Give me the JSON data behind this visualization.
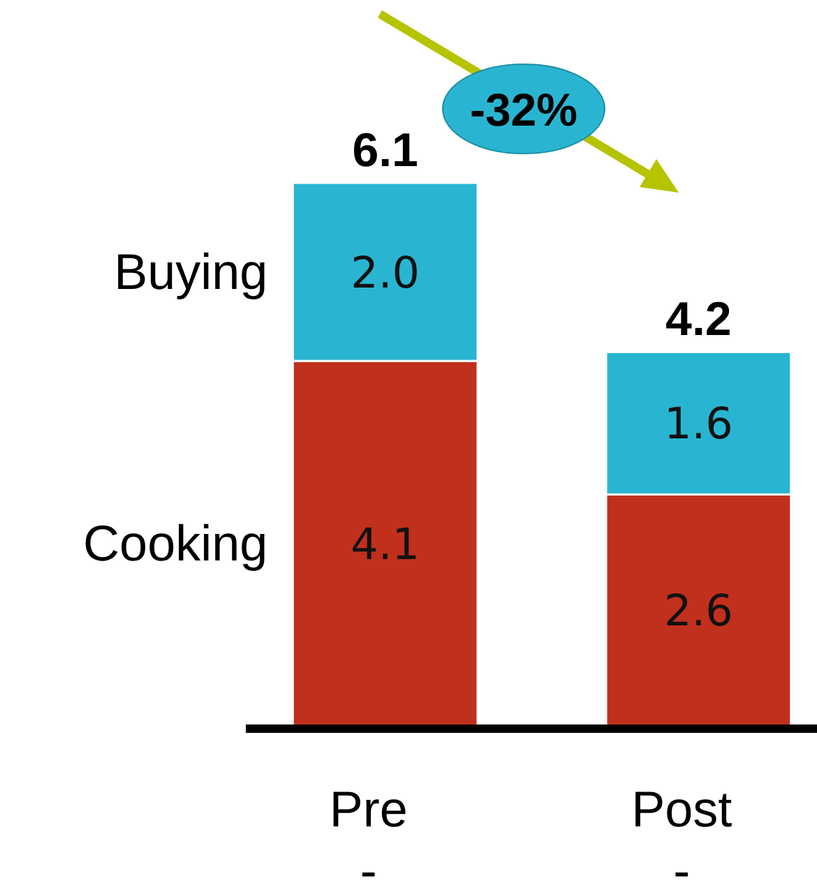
{
  "chart_data": {
    "type": "bar",
    "stacked": true,
    "categories": [
      "Pre\n-",
      "Post\n-"
    ],
    "series": [
      {
        "name": "Cooking",
        "color": "#c1301c",
        "values": [
          4.1,
          2.6
        ],
        "value_labels": [
          "4.1",
          "2.6"
        ]
      },
      {
        "name": "Buying",
        "color": "#29b5d1",
        "values": [
          2.0,
          1.6
        ],
        "value_labels": [
          "2.0",
          "1.6"
        ]
      }
    ],
    "totals": [
      "6.1",
      "4.2"
    ],
    "annotations": [
      "-32%"
    ]
  }
}
